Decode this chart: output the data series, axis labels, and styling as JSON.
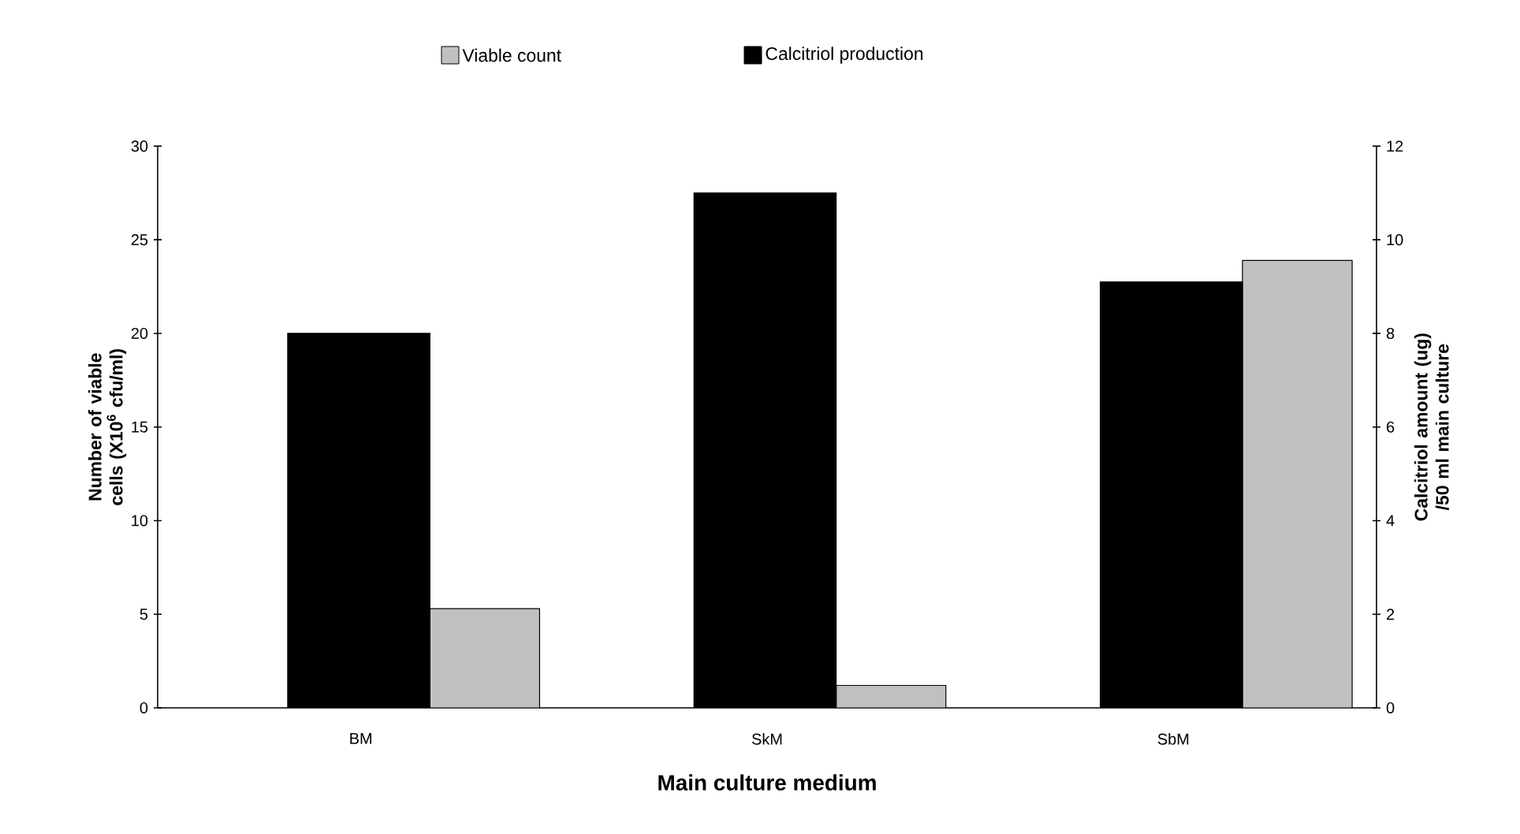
{
  "chart_data": {
    "type": "bar",
    "xlabel": "Main culture medium",
    "ylabel": "Number of viable cells (X10$^{6}$ cfu/ml)",
    "y2label": "Calcitriol amount (ug) /50 ml main culture",
    "categories": [
      "BM",
      "SkM",
      "SbM"
    ],
    "series": [
      {
        "name": "Viable count",
        "color": "#c0c0c0",
        "values": [
          5.3,
          1.2,
          23.9
        ]
      },
      {
        "name": "Calcitriol production",
        "color": "#000000",
        "values": [
          8.0,
          11.0,
          9.1
        ],
        "axis": "y2"
      }
    ],
    "ylim": [
      0,
      30
    ],
    "yticks": [
      0,
      5,
      10,
      15,
      20,
      25,
      30
    ],
    "y2lim": [
      0,
      12
    ],
    "y2ticks": [
      0,
      2,
      4,
      6,
      8,
      10,
      12
    ],
    "legend": "top",
    "grid": false
  }
}
